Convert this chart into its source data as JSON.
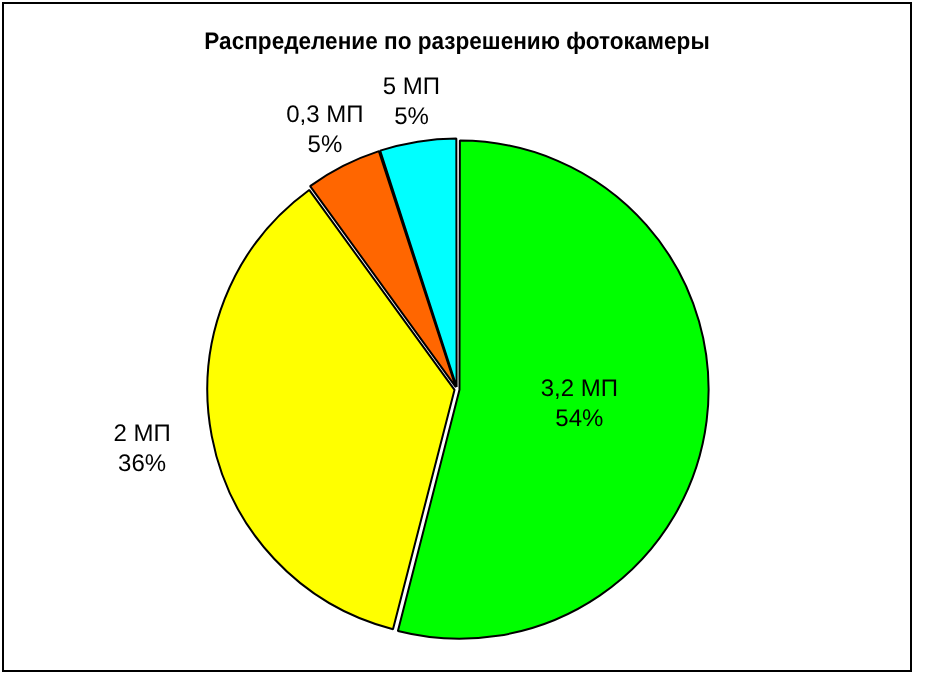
{
  "chart_data": {
    "type": "pie",
    "title": "Распределение по разрешению фотокамеры",
    "categories": [
      "3,2 МП",
      "2 МП",
      "0,3 МП",
      "5 МП"
    ],
    "values": [
      54,
      36,
      5,
      5
    ],
    "colors": [
      "#00ff00",
      "#ffff00",
      "#ff6600",
      "#00ffff"
    ],
    "value_labels": [
      "54%",
      "36%",
      "5%",
      "5%"
    ],
    "legend": false
  }
}
